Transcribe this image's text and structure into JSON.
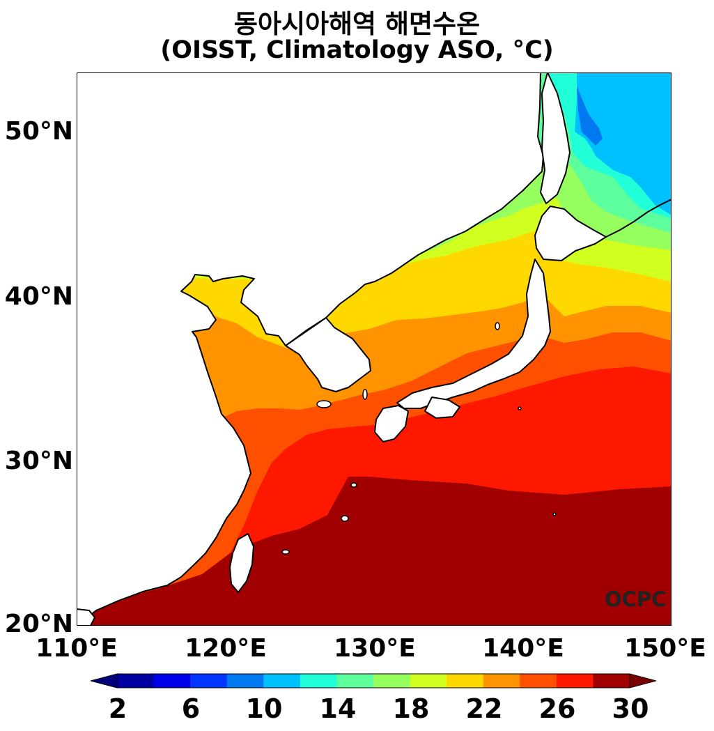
{
  "title": {
    "line1": "동아시아해역 해면수온",
    "line2": "(OISST, Climatology ASO, °C)"
  },
  "map": {
    "lon_range": [
      110,
      150
    ],
    "lat_range": [
      20,
      53.5
    ],
    "lat_ticks": [
      "50°N",
      "40°N",
      "30°N",
      "20°N"
    ],
    "lon_ticks": [
      "110°E",
      "120°E",
      "130°E",
      "140°E",
      "150°E"
    ],
    "watermark": "OCPC",
    "land_color": "#ffffff",
    "coast_color": "#000000"
  },
  "colorbar": {
    "levels": [
      2,
      4,
      6,
      8,
      10,
      12,
      14,
      16,
      18,
      20,
      22,
      24,
      26,
      28,
      30
    ],
    "colors": [
      "#0000a0",
      "#0000e8",
      "#0036ff",
      "#0078f0",
      "#00c0ff",
      "#20ffd8",
      "#5cff9c",
      "#96ff60",
      "#d0ff20",
      "#ffd800",
      "#ff9400",
      "#ff5000",
      "#ff1800",
      "#a00000"
    ],
    "under_color": "#00007c",
    "over_color": "#7a0000",
    "tick_labels": [
      "2",
      "6",
      "10",
      "14",
      "18",
      "22",
      "26",
      "30"
    ]
  }
}
